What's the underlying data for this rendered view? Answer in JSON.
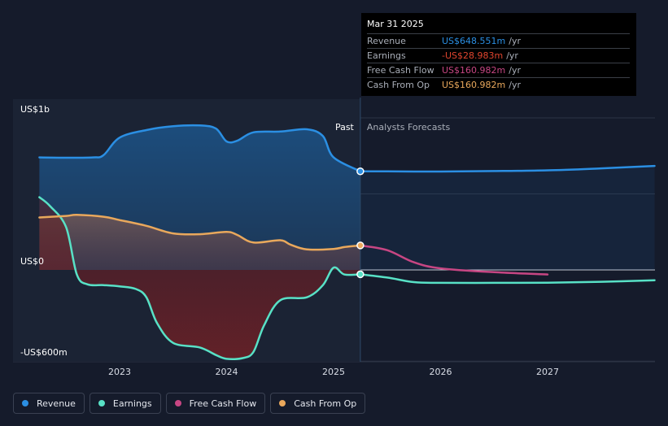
{
  "chart_data": {
    "type": "line",
    "x_axis": {
      "ticks": [
        "2023",
        "2024",
        "2025",
        "2026",
        "2027"
      ],
      "min": 2022.25,
      "max": 2028.0
    },
    "y_axis": {
      "min": -700,
      "max": 1150,
      "labels": [
        {
          "value": 1000,
          "text": "US$1b"
        },
        {
          "value": 0,
          "text": "US$0"
        },
        {
          "value": -600,
          "text": "-US$600m"
        }
      ]
    },
    "divider_x": 2025.25,
    "past_label": "Past",
    "forecast_label": "Analysts Forecasts",
    "series": [
      {
        "name": "Revenue",
        "color": "#2b8fe3",
        "points": [
          [
            2022.25,
            740
          ],
          [
            2022.5,
            738
          ],
          [
            2022.75,
            740
          ],
          [
            2022.85,
            755
          ],
          [
            2023.0,
            870
          ],
          [
            2023.25,
            920
          ],
          [
            2023.5,
            945
          ],
          [
            2023.75,
            950
          ],
          [
            2023.9,
            930
          ],
          [
            2024.0,
            845
          ],
          [
            2024.1,
            850
          ],
          [
            2024.25,
            905
          ],
          [
            2024.5,
            910
          ],
          [
            2024.75,
            925
          ],
          [
            2024.9,
            880
          ],
          [
            2025.0,
            740
          ],
          [
            2025.25,
            648.551
          ]
        ],
        "forecast": [
          [
            2025.25,
            648.551
          ],
          [
            2025.5,
            648
          ],
          [
            2026.0,
            647
          ],
          [
            2026.5,
            650
          ],
          [
            2027.0,
            655
          ],
          [
            2027.5,
            668
          ],
          [
            2028.0,
            684
          ]
        ]
      },
      {
        "name": "Earnings",
        "color": "#58e1c6",
        "points": [
          [
            2022.25,
            478
          ],
          [
            2022.35,
            420
          ],
          [
            2022.5,
            280
          ],
          [
            2022.6,
            -30
          ],
          [
            2022.7,
            -95
          ],
          [
            2022.85,
            -100
          ],
          [
            2023.0,
            -108
          ],
          [
            2023.15,
            -125
          ],
          [
            2023.25,
            -180
          ],
          [
            2023.35,
            -350
          ],
          [
            2023.5,
            -480
          ],
          [
            2023.75,
            -510
          ],
          [
            2023.9,
            -560
          ],
          [
            2024.0,
            -585
          ],
          [
            2024.15,
            -580
          ],
          [
            2024.25,
            -540
          ],
          [
            2024.35,
            -365
          ],
          [
            2024.5,
            -200
          ],
          [
            2024.75,
            -180
          ],
          [
            2024.9,
            -100
          ],
          [
            2025.0,
            15
          ],
          [
            2025.1,
            -30
          ],
          [
            2025.25,
            -28.983
          ]
        ],
        "forecast": [
          [
            2025.25,
            -28.983
          ],
          [
            2025.5,
            -50
          ],
          [
            2025.75,
            -80
          ],
          [
            2026.0,
            -85
          ],
          [
            2026.5,
            -85
          ],
          [
            2027.0,
            -84
          ],
          [
            2027.5,
            -78
          ],
          [
            2028.0,
            -68
          ]
        ]
      },
      {
        "name": "Free Cash Flow",
        "color": "#c74683",
        "points": [],
        "forecast": [
          [
            2025.25,
            160.982
          ],
          [
            2025.5,
            130
          ],
          [
            2025.75,
            50
          ],
          [
            2026.0,
            10
          ],
          [
            2026.5,
            -15
          ],
          [
            2027.0,
            -30
          ]
        ]
      },
      {
        "name": "Cash From Op",
        "color": "#e9a85c",
        "points": [
          [
            2022.25,
            345
          ],
          [
            2022.5,
            355
          ],
          [
            2022.6,
            362
          ],
          [
            2022.85,
            350
          ],
          [
            2023.0,
            328
          ],
          [
            2023.25,
            290
          ],
          [
            2023.5,
            240
          ],
          [
            2023.75,
            235
          ],
          [
            2024.0,
            250
          ],
          [
            2024.1,
            230
          ],
          [
            2024.25,
            180
          ],
          [
            2024.5,
            195
          ],
          [
            2024.6,
            165
          ],
          [
            2024.75,
            135
          ],
          [
            2025.0,
            138
          ],
          [
            2025.1,
            150
          ],
          [
            2025.25,
            160.982
          ]
        ],
        "forecast": []
      }
    ]
  },
  "tooltip": {
    "date": "Mar 31 2025",
    "rows": [
      {
        "name": "Revenue",
        "value": "US$648.551m",
        "unit": "/yr",
        "color": "#2b8fe3"
      },
      {
        "name": "Earnings",
        "value": "-US$28.983m",
        "unit": "/yr",
        "color": "#e0452e"
      },
      {
        "name": "Free Cash Flow",
        "value": "US$160.982m",
        "unit": "/yr",
        "color": "#c74683"
      },
      {
        "name": "Cash From Op",
        "value": "US$160.982m",
        "unit": "/yr",
        "color": "#e9a85c"
      }
    ]
  },
  "legend": [
    {
      "label": "Revenue",
      "color": "#2b8fe3"
    },
    {
      "label": "Earnings",
      "color": "#58e1c6"
    },
    {
      "label": "Free Cash Flow",
      "color": "#c74683"
    },
    {
      "label": "Cash From Op",
      "color": "#e9a85c"
    }
  ]
}
